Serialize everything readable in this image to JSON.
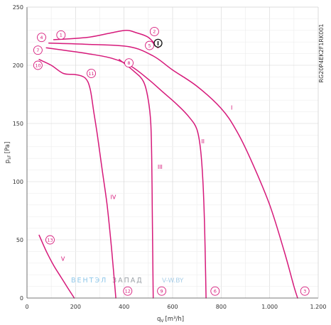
{
  "chart_data": {
    "type": "line",
    "model_code": "RG20P4EK2F1RK001",
    "xlabel": "q",
    "xlabel_sub": "V",
    "xlabel_unit": "[m³/h]",
    "ylabel": "p",
    "ylabel_sub": "sF",
    "ylabel_unit": "[Pa]",
    "xlim": [
      0,
      1200
    ],
    "ylim": [
      0,
      250
    ],
    "x_ticks": [
      0,
      200,
      400,
      600,
      800,
      1000,
      1200
    ],
    "x_tick_labels": [
      "0",
      "200",
      "400",
      "600",
      "800",
      "1.000",
      "1.200"
    ],
    "y_ticks": [
      0,
      50,
      100,
      150,
      200,
      250
    ],
    "y_tick_labels": [
      "0",
      "50",
      "100",
      "150",
      "200",
      "250"
    ],
    "grid": true,
    "line_color": "#d6197a",
    "series": [
      {
        "name": "I",
        "label_at": [
          840,
          162
        ],
        "points": [
          [
            90,
            219
          ],
          [
            250,
            218
          ],
          [
            420,
            216
          ],
          [
            520,
            208
          ],
          [
            600,
            196
          ],
          [
            700,
            182
          ],
          [
            800,
            163
          ],
          [
            860,
            145
          ],
          [
            920,
            120
          ],
          [
            1000,
            80
          ],
          [
            1060,
            40
          ],
          [
            1100,
            10
          ],
          [
            1115,
            0
          ]
        ]
      },
      {
        "name": "II",
        "label_at": [
          718,
          133
        ],
        "points": [
          [
            80,
            215
          ],
          [
            250,
            210
          ],
          [
            350,
            206
          ],
          [
            430,
            199
          ],
          [
            500,
            188
          ],
          [
            560,
            177
          ],
          [
            620,
            166
          ],
          [
            670,
            155
          ],
          [
            700,
            145
          ],
          [
            715,
            128
          ],
          [
            725,
            100
          ],
          [
            732,
            60
          ],
          [
            736,
            20
          ],
          [
            738,
            0
          ]
        ]
      },
      {
        "name": "III",
        "label_at": [
          538,
          111
        ],
        "points": [
          [
            110,
            222
          ],
          [
            250,
            224
          ],
          [
            350,
            228
          ],
          [
            410,
            230
          ],
          [
            450,
            228
          ],
          [
            500,
            224
          ],
          [
            540,
            215
          ]
        ]
      },
      {
        "name": "III_branch",
        "points": [
          [
            380,
            205
          ],
          [
            440,
            195
          ],
          [
            480,
            186
          ],
          [
            500,
            170
          ],
          [
            510,
            150
          ],
          [
            514,
            120
          ],
          [
            516,
            80
          ],
          [
            518,
            40
          ],
          [
            520,
            0
          ]
        ]
      },
      {
        "name": "IV",
        "label_at": [
          344,
          85
        ],
        "points": [
          [
            50,
            205
          ],
          [
            100,
            200
          ],
          [
            150,
            193
          ],
          [
            200,
            192
          ],
          [
            240,
            189
          ],
          [
            260,
            180
          ],
          [
            275,
            160
          ],
          [
            290,
            140
          ],
          [
            310,
            110
          ],
          [
            330,
            80
          ],
          [
            345,
            50
          ],
          [
            358,
            20
          ],
          [
            366,
            0
          ]
        ]
      },
      {
        "name": "V",
        "label_at": [
          140,
          32
        ],
        "points": [
          [
            50,
            54
          ],
          [
            80,
            40
          ],
          [
            110,
            28
          ],
          [
            140,
            18
          ],
          [
            170,
            8
          ],
          [
            195,
            0
          ]
        ]
      }
    ],
    "markers": [
      {
        "label": "1",
        "x": 140,
        "y": 226
      },
      {
        "label": "2",
        "x": 525,
        "y": 229
      },
      {
        "label": "3",
        "x": 1145,
        "y": 6
      },
      {
        "label": "4",
        "x": 60,
        "y": 224
      },
      {
        "label": "5",
        "x": 505,
        "y": 217
      },
      {
        "label": "6",
        "x": 775,
        "y": 6
      },
      {
        "label": "7",
        "x": 45,
        "y": 213
      },
      {
        "label": "8",
        "x": 420,
        "y": 202
      },
      {
        "label": "9",
        "x": 555,
        "y": 6
      },
      {
        "label": "10",
        "x": 45,
        "y": 200
      },
      {
        "label": "11",
        "x": 265,
        "y": 193
      },
      {
        "label": "12",
        "x": 415,
        "y": 6
      },
      {
        "label": "13",
        "x": 95,
        "y": 50
      }
    ],
    "operating_point": {
      "label": "I",
      "x": 540,
      "y": 219
    }
  },
  "watermark": {
    "part1": "ВЕНТЭЛ",
    "part2": "ЗАПАД",
    "part3": "V-W.BY"
  }
}
